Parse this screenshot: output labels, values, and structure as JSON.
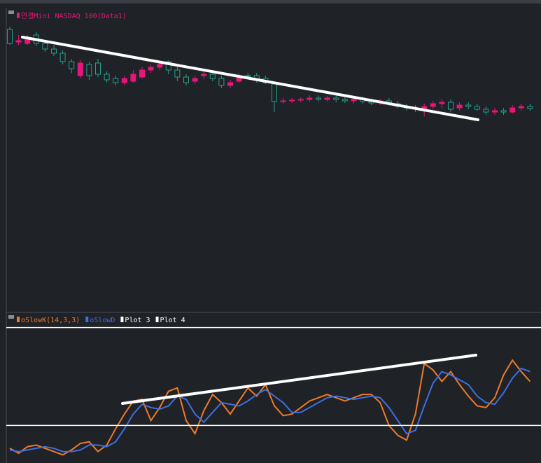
{
  "chart_data": [
    {
      "type": "candlestick",
      "title": "연결Mini NASDAQ 100(Data1)",
      "title_color": "#e8157a",
      "up_color": "#e8157a",
      "down_color": "#26a08c",
      "ylim": [
        0,
        430
      ],
      "open": [
        403,
        385,
        383,
        395,
        383,
        375,
        369,
        357,
        337,
        353,
        355,
        339,
        333,
        327,
        329,
        335,
        345,
        349,
        357,
        345,
        335,
        329,
        337,
        339,
        333,
        323,
        329,
        337,
        337,
        333,
        325,
        300,
        301,
        302,
        303,
        305,
        303,
        305,
        303,
        301,
        303,
        300,
        299,
        301,
        297,
        293,
        291,
        287,
        293,
        297,
        299,
        291,
        295,
        293,
        289,
        285,
        287,
        285,
        291,
        293
      ],
      "high": [
        407,
        395,
        395,
        399,
        387,
        381,
        373,
        361,
        359,
        357,
        361,
        343,
        337,
        337,
        345,
        349,
        353,
        357,
        359,
        349,
        339,
        337,
        343,
        345,
        337,
        331,
        341,
        341,
        341,
        337,
        327,
        305,
        305,
        306,
        309,
        309,
        308,
        309,
        306,
        305,
        307,
        304,
        304,
        305,
        301,
        297,
        295,
        297,
        301,
        303,
        303,
        299,
        299,
        297,
        293,
        291,
        291,
        295,
        297,
        297
      ],
      "low": [
        381,
        381,
        381,
        379,
        371,
        365,
        353,
        341,
        333,
        331,
        335,
        327,
        323,
        323,
        327,
        333,
        341,
        345,
        339,
        329,
        323,
        325,
        333,
        329,
        319,
        319,
        327,
        333,
        327,
        325,
        285,
        297,
        298,
        299,
        300,
        300,
        300,
        299,
        298,
        297,
        297,
        295,
        295,
        294,
        290,
        287,
        285,
        279,
        289,
        291,
        285,
        287,
        289,
        287,
        281,
        281,
        281,
        283,
        287,
        287
      ],
      "close": [
        383,
        387,
        390,
        383,
        375,
        369,
        357,
        347,
        355,
        337,
        339,
        331,
        327,
        333,
        339,
        345,
        349,
        353,
        345,
        335,
        327,
        333,
        339,
        333,
        323,
        327,
        337,
        337,
        331,
        327,
        300,
        301,
        302,
        303,
        305,
        303,
        305,
        303,
        301,
        303,
        300,
        298,
        301,
        297,
        293,
        291,
        289,
        293,
        297,
        299,
        289,
        295,
        293,
        289,
        285,
        287,
        285,
        291,
        293,
        290
      ]
    },
    {
      "type": "line",
      "ylim": [
        -3,
        82
      ],
      "series": [
        {
          "name": "oSlowK(14,3,3)",
          "color": "#f07a28",
          "values": [
            6,
            3,
            7,
            8,
            6,
            4,
            2,
            5,
            9,
            10,
            4,
            8,
            18,
            27,
            35,
            36,
            23,
            31,
            41,
            43,
            23,
            15,
            29,
            39,
            34,
            27,
            35,
            43,
            38,
            45,
            32,
            26,
            27,
            31,
            35,
            37,
            39,
            37,
            35,
            37,
            39,
            39,
            34,
            20,
            14,
            11,
            27,
            58,
            54,
            47,
            53,
            45,
            38,
            32,
            31,
            37,
            51,
            60,
            53,
            47
          ]
        },
        {
          "name": "oSlowD",
          "color": "#3f6fe0",
          "values": [
            5,
            4,
            5,
            6,
            7,
            6,
            4,
            4,
            5,
            8,
            8,
            7,
            10,
            18,
            27,
            33,
            31,
            30,
            32,
            38,
            36,
            27,
            22,
            28,
            34,
            33,
            32,
            35,
            39,
            42,
            38,
            34,
            28,
            28,
            31,
            34,
            37,
            38,
            37,
            36,
            37,
            38,
            37,
            31,
            23,
            15,
            17,
            32,
            46,
            53,
            51,
            48,
            45,
            38,
            34,
            33,
            40,
            49,
            55,
            53
          ]
        },
        {
          "name": "Plot 3",
          "color": "#ffffff",
          "level": 80
        },
        {
          "name": "Plot 4",
          "color": "#ffffff",
          "level": 20
        }
      ]
    }
  ]
}
